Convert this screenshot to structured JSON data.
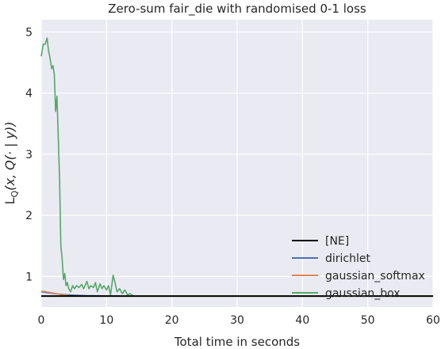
{
  "chart_data": {
    "type": "line",
    "title": "Zero-sum fair_die with randomised 0-1 loss",
    "xlabel": "Total time in seconds",
    "ylabel": "L_Q(x, Q(· | y))",
    "xlim": [
      0,
      60
    ],
    "ylim": [
      0.5,
      5.2
    ],
    "xticks": [
      0,
      10,
      20,
      30,
      40,
      50,
      60
    ],
    "yticks": [
      1,
      2,
      3,
      4,
      5
    ],
    "grid": true,
    "legend_position": "lower-right",
    "background": "#eaeaf2",
    "series": [
      {
        "name": "[NE]",
        "color": "#000000",
        "x": [
          0,
          60
        ],
        "y": [
          0.68,
          0.68
        ]
      },
      {
        "name": "dirichlet",
        "color": "#4c72b0",
        "x": [
          0,
          1,
          2,
          3,
          4,
          5,
          6,
          7,
          8,
          10,
          12
        ],
        "y": [
          0.75,
          0.735,
          0.72,
          0.71,
          0.7,
          0.695,
          0.69,
          0.687,
          0.685,
          0.683,
          0.681
        ]
      },
      {
        "name": "gaussian_softmax",
        "color": "#dd8452",
        "x": [
          0,
          0.5,
          1,
          1.5,
          2,
          2.5,
          3,
          3.5,
          4
        ],
        "y": [
          0.76,
          0.755,
          0.745,
          0.735,
          0.725,
          0.715,
          0.705,
          0.7,
          0.695
        ]
      },
      {
        "name": "gaussian_box",
        "color": "#55a868",
        "x": [
          0,
          0.3,
          0.6,
          0.9,
          1.1,
          1.3,
          1.6,
          1.8,
          2.0,
          2.2,
          2.4,
          2.6,
          2.8,
          3.0,
          3.2,
          3.4,
          3.6,
          3.8,
          4.0,
          4.2,
          4.5,
          4.8,
          5.1,
          5.4,
          5.8,
          6.2,
          6.5,
          7.0,
          7.3,
          7.6,
          8.0,
          8.3,
          8.6,
          9.0,
          9.3,
          9.6,
          10.0,
          10.3,
          10.6,
          10.8,
          11.0,
          11.3,
          11.6,
          12.0,
          12.4,
          12.8,
          13.2,
          13.6,
          14.0
        ],
        "y": [
          4.6,
          4.8,
          4.8,
          4.9,
          4.7,
          4.6,
          4.4,
          4.45,
          4.3,
          3.7,
          3.95,
          3.3,
          2.6,
          1.5,
          1.3,
          0.95,
          1.05,
          0.85,
          0.9,
          0.8,
          0.75,
          0.85,
          0.8,
          0.85,
          0.82,
          0.87,
          0.8,
          0.92,
          0.8,
          0.85,
          0.82,
          0.9,
          0.75,
          0.88,
          0.8,
          0.85,
          0.78,
          0.85,
          0.7,
          0.85,
          1.02,
          0.9,
          0.75,
          0.8,
          0.72,
          0.78,
          0.7,
          0.72,
          0.69
        ]
      }
    ]
  }
}
